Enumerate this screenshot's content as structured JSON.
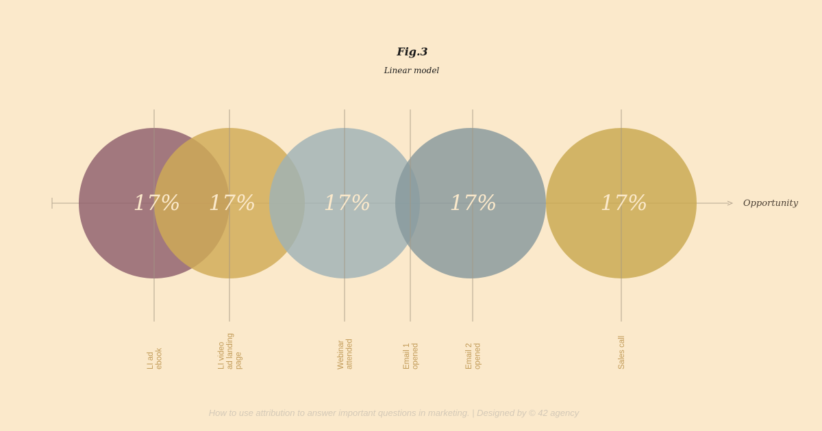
{
  "figure": {
    "title": "Fig.3",
    "subtitle": "Linear model"
  },
  "axis": {
    "end_label": "Opportunity"
  },
  "touchpoints": [
    {
      "label_lines": [
        "LI ad",
        "ebook"
      ],
      "value_label": "17%",
      "color": "#8e5f6d"
    },
    {
      "label_lines": [
        "LI video",
        "ad landing",
        "page"
      ],
      "value_label": "17%",
      "color": "#cfab55"
    },
    {
      "label_lines": [
        "Webinar",
        "attended"
      ],
      "value_label": "17%",
      "color": "#9fb2b6"
    },
    {
      "label_lines": [
        "Email 1",
        "opened"
      ],
      "value_label": "",
      "color": ""
    },
    {
      "label_lines": [
        "Email 2",
        "opened"
      ],
      "value_label": "17%",
      "color": "#86999c"
    },
    {
      "label_lines": [
        "Sales call"
      ],
      "value_label": "17%",
      "color": "#c8a84f"
    }
  ],
  "footer": {
    "text": "How to use attribution to answer important questions in marketing. | Designed by © 42 agency"
  }
}
